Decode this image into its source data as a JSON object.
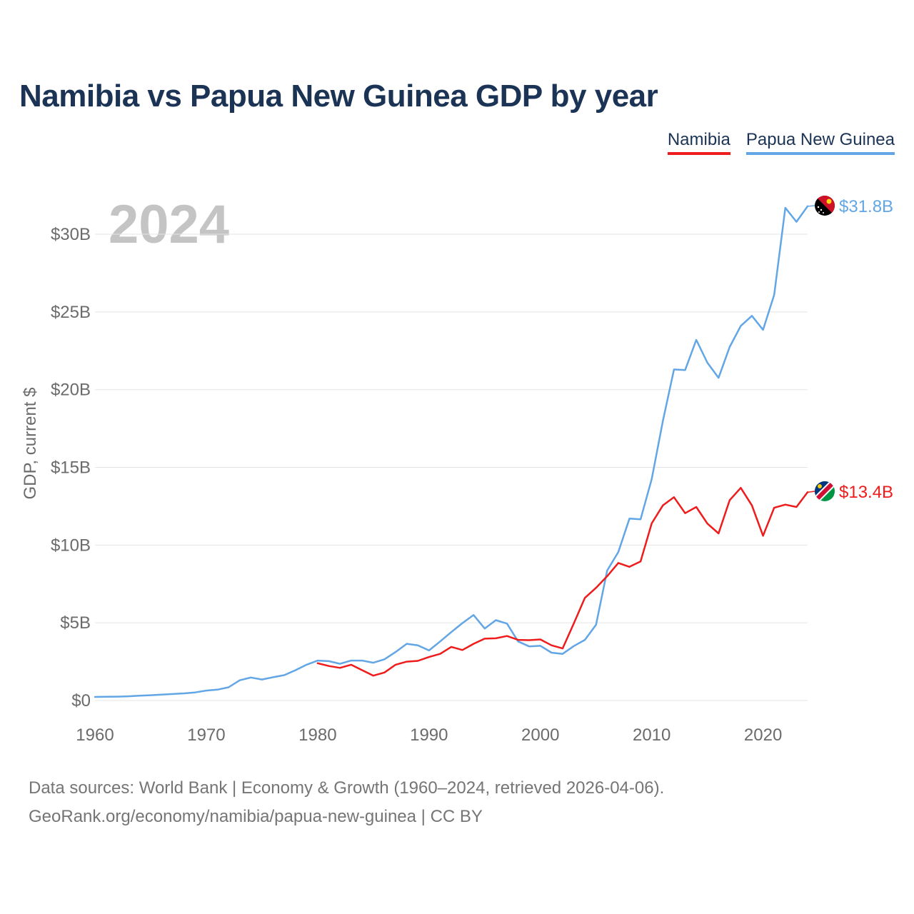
{
  "title": "Namibia vs Papua New Guinea GDP by year",
  "legend": {
    "namibia_label": "Namibia",
    "png_label": "Papua New Guinea"
  },
  "colors": {
    "namibia": "#ee1c1c",
    "png": "#62a6e6",
    "title": "#1b3354",
    "axis_text": "#6b6b6b",
    "grid": "#e4e4e4",
    "year_watermark": "#c4c4c4"
  },
  "year_watermark": "2024",
  "footer": {
    "line1": "Data sources: World Bank | Economy & Growth (1960–2024, retrieved 2026-04-06).",
    "line2": "GeoRank.org/economy/namibia/papua-new-guinea | CC BY"
  },
  "chart_data": {
    "type": "line",
    "title": "Namibia vs Papua New Guinea GDP by year",
    "xlabel": "",
    "ylabel": "GDP, current $",
    "xlim": [
      1960,
      2024
    ],
    "ylim": [
      0,
      33
    ],
    "x_ticks": [
      1960,
      1970,
      1980,
      1990,
      2000,
      2010,
      2020
    ],
    "y_ticks": [
      0,
      5,
      10,
      15,
      20,
      25,
      30
    ],
    "y_tick_labels": [
      "$0",
      "$5B",
      "$10B",
      "$15B",
      "$20B",
      "$25B",
      "$30B"
    ],
    "grid": true,
    "unit": "billions USD",
    "series": [
      {
        "name": "Papua New Guinea",
        "color": "#62a6e6",
        "end_label": "$31.8B",
        "flag_icon": "papua-new-guinea-flag-icon",
        "x": [
          1960,
          1961,
          1962,
          1963,
          1964,
          1965,
          1966,
          1967,
          1968,
          1969,
          1970,
          1971,
          1972,
          1973,
          1974,
          1975,
          1976,
          1977,
          1978,
          1979,
          1980,
          1981,
          1982,
          1983,
          1984,
          1985,
          1986,
          1987,
          1988,
          1989,
          1990,
          1991,
          1992,
          1993,
          1994,
          1995,
          1996,
          1997,
          1998,
          1999,
          2000,
          2001,
          2002,
          2003,
          2004,
          2005,
          2006,
          2007,
          2008,
          2009,
          2010,
          2011,
          2012,
          2013,
          2014,
          2015,
          2016,
          2017,
          2018,
          2019,
          2020,
          2021,
          2022,
          2023,
          2024
        ],
        "values": [
          0.23,
          0.24,
          0.25,
          0.27,
          0.31,
          0.34,
          0.38,
          0.42,
          0.46,
          0.52,
          0.64,
          0.7,
          0.85,
          1.3,
          1.48,
          1.35,
          1.5,
          1.63,
          1.95,
          2.3,
          2.57,
          2.53,
          2.36,
          2.57,
          2.57,
          2.43,
          2.65,
          3.12,
          3.65,
          3.55,
          3.22,
          3.8,
          4.4,
          4.98,
          5.5,
          4.63,
          5.17,
          4.95,
          3.8,
          3.48,
          3.52,
          3.08,
          3.0,
          3.5,
          3.9,
          4.87,
          8.36,
          9.55,
          11.7,
          11.66,
          14.25,
          17.98,
          21.3,
          21.26,
          23.2,
          21.73,
          20.76,
          22.74,
          24.1,
          24.75,
          23.85,
          26.1,
          31.7,
          30.8,
          31.8
        ]
      },
      {
        "name": "Namibia",
        "color": "#ee1c1c",
        "end_label": "$13.4B",
        "flag_icon": "namibia-flag-icon",
        "x": [
          1980,
          1981,
          1982,
          1983,
          1984,
          1985,
          1986,
          1987,
          1988,
          1989,
          1990,
          1991,
          1992,
          1993,
          1994,
          1995,
          1996,
          1997,
          1998,
          1999,
          2000,
          2001,
          2002,
          2003,
          2004,
          2005,
          2006,
          2007,
          2008,
          2009,
          2010,
          2011,
          2012,
          2013,
          2014,
          2015,
          2016,
          2017,
          2018,
          2019,
          2020,
          2021,
          2022,
          2023,
          2024
        ],
        "values": [
          2.4,
          2.22,
          2.1,
          2.3,
          1.95,
          1.6,
          1.8,
          2.3,
          2.5,
          2.55,
          2.8,
          3.0,
          3.45,
          3.25,
          3.65,
          3.98,
          4.0,
          4.15,
          3.9,
          3.88,
          3.93,
          3.55,
          3.35,
          4.95,
          6.6,
          7.25,
          8.0,
          8.85,
          8.6,
          8.95,
          11.4,
          12.55,
          13.08,
          12.05,
          12.45,
          11.38,
          10.75,
          12.88,
          13.68,
          12.55,
          10.6,
          12.4,
          12.6,
          12.45,
          13.4
        ]
      }
    ]
  }
}
